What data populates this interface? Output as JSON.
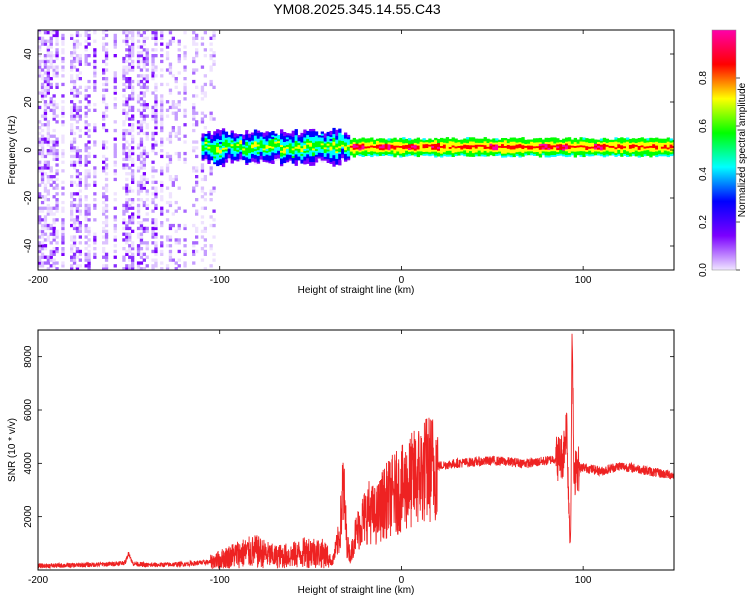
{
  "title": "YM08.2025.345.14.55.C43",
  "chart_data": [
    {
      "type": "heatmap",
      "title": "YM08.2025.345.14.55.C43",
      "xlabel": "Height of straight line (km)",
      "ylabel": "Frequency (Hz)",
      "xlim": [
        -200,
        150
      ],
      "ylim": [
        -50,
        50
      ],
      "xticks": [
        -200,
        -100,
        0,
        100
      ],
      "yticks": [
        -40,
        -20,
        0,
        20,
        40
      ],
      "colorbar": {
        "label": "Normalized spectral amplitude",
        "range": [
          0.0,
          1.0
        ],
        "ticks": [
          0.0,
          0.2,
          0.4,
          0.6,
          0.8
        ],
        "tick_labels": [
          "0.0",
          "0.2",
          "0.4",
          "0.6",
          "0.8"
        ],
        "colormap": [
          "#f0e6ff",
          "#7b00ff",
          "#0000ff",
          "#00ffff",
          "#00ff00",
          "#ffff00",
          "#ff0000",
          "#ff00aa"
        ]
      },
      "features": {
        "noise_region_x": [
          -200,
          -103
        ],
        "signal_start_x": -110,
        "band_center_hz": 1,
        "band_halfwidth_hz": 3,
        "strong_peaks_x": [
          -25,
          -10,
          5,
          18,
          50,
          78,
          88,
          108
        ]
      }
    },
    {
      "type": "line",
      "title": "",
      "xlabel": "Height of straight line (km)",
      "ylabel": "SNR (10 * v/v)",
      "xlim": [
        -200,
        150
      ],
      "ylim": [
        0,
        9000
      ],
      "xticks": [
        -200,
        -100,
        0,
        100
      ],
      "yticks": [
        2000,
        4000,
        6000,
        8000
      ],
      "series": [
        {
          "name": "SNR",
          "color": "#ee2222",
          "x": [
            -200,
            -180,
            -160,
            -152,
            -150,
            -148,
            -140,
            -120,
            -105,
            -100,
            -90,
            -80,
            -70,
            -60,
            -50,
            -42,
            -38,
            -34,
            -32,
            -30,
            -28,
            -26,
            -22,
            -18,
            -14,
            -10,
            -5,
            0,
            5,
            10,
            15,
            20,
            25,
            30,
            40,
            50,
            60,
            70,
            80,
            86,
            89,
            91,
            92,
            93,
            94,
            95,
            96,
            97,
            100,
            110,
            120,
            130,
            140,
            150
          ],
          "y": [
            150,
            180,
            220,
            280,
            650,
            250,
            180,
            220,
            300,
            400,
            600,
            700,
            500,
            550,
            700,
            600,
            300,
            1300,
            3200,
            1000,
            500,
            1200,
            1800,
            2200,
            2000,
            2500,
            2800,
            3000,
            3300,
            3600,
            3800,
            3900,
            3950,
            4000,
            4050,
            4100,
            4050,
            4000,
            4100,
            4200,
            4300,
            5500,
            2800,
            900,
            9000,
            2800,
            4200,
            3800,
            3850,
            3700,
            3900,
            3800,
            3650,
            3550
          ]
        }
      ]
    }
  ]
}
